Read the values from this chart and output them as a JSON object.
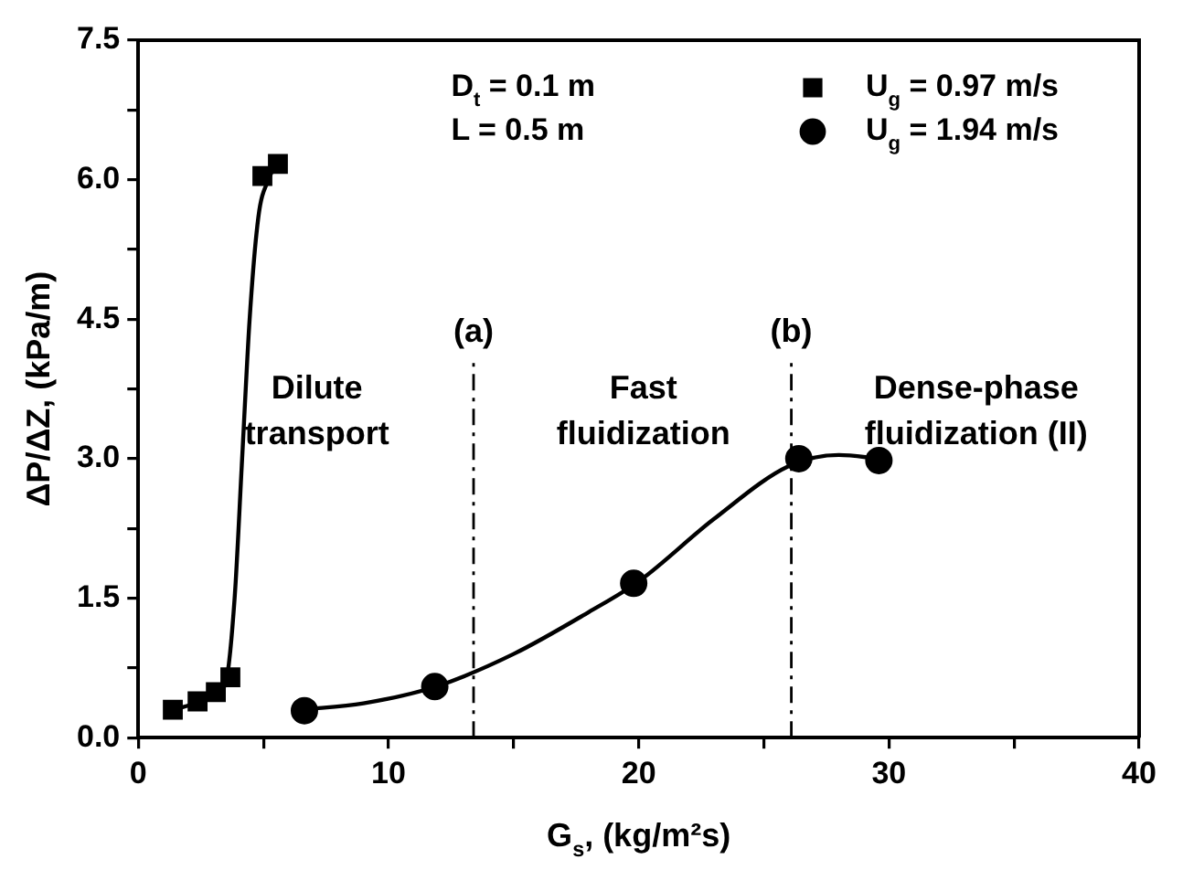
{
  "chart_data": {
    "type": "scatter",
    "xlabel": "G$_{s}$, (kg/m²s)",
    "ylabel": "ΔP/ΔZ, (kPa/m)",
    "xlim": [
      0,
      40
    ],
    "ylim": [
      0,
      7.5
    ],
    "xticks": [
      0,
      {
        "value": 5,
        "label": null
      },
      10,
      {
        "value": 15,
        "label": null
      },
      20,
      {
        "value": 25,
        "label": null
      },
      30,
      {
        "value": 35,
        "label": null
      },
      40
    ],
    "yticks": [
      {
        "value": 0,
        "label": "0.0"
      },
      {
        "value": 0.75,
        "label": null
      },
      {
        "value": 1.5,
        "label": "1.5"
      },
      {
        "value": 2.25,
        "label": null
      },
      {
        "value": 3.0,
        "label": "3.0"
      },
      {
        "value": 3.75,
        "label": null
      },
      {
        "value": 4.5,
        "label": "4.5"
      },
      {
        "value": 5.25,
        "label": null
      },
      {
        "value": 6.0,
        "label": "6.0"
      },
      {
        "value": 6.75,
        "label": null
      },
      {
        "value": 7.5,
        "label": "7.5"
      }
    ],
    "grid": false,
    "legend": "top right",
    "series": [
      {
        "name": "U$_{g}$ = 0.97 m/s",
        "color": "#000000",
        "marker": "square",
        "x": [
          1.38,
          2.37,
          3.1,
          3.68,
          4.96,
          5.58
        ],
        "values": [
          0.3,
          0.39,
          0.49,
          0.65,
          6.04,
          6.17
        ]
      },
      {
        "name": "U$_{g}$ = 1.94 m/s",
        "color": "#000000",
        "marker": "circle",
        "x": [
          6.64,
          11.85,
          19.8,
          26.4,
          29.6
        ],
        "values": [
          0.29,
          0.55,
          1.66,
          3.0,
          2.98
        ]
      },
      {
        "type": "line",
        "color": "#000000",
        "marker": "none",
        "x": [
          1.4,
          2.4,
          3.1,
          3.5,
          3.85,
          4.15,
          4.45,
          4.8,
          5.2,
          5.6
        ],
        "values": [
          0.3,
          0.38,
          0.47,
          0.6,
          1.5,
          3.0,
          4.5,
          5.6,
          6.0,
          6.2
        ]
      },
      {
        "type": "line",
        "color": "#000000",
        "marker": "none",
        "x": [
          6.5,
          9,
          11.9,
          15,
          18,
          20,
          23,
          26,
          28,
          29.6
        ],
        "values": [
          0.3,
          0.37,
          0.55,
          0.9,
          1.35,
          1.68,
          2.35,
          2.92,
          3.04,
          3.0
        ]
      }
    ],
    "ref_lines": [
      {
        "axis": "x",
        "value": 13.4,
        "label": "(a)",
        "line_style": "dashdot"
      },
      {
        "axis": "x",
        "value": 26.1,
        "label": "(b)",
        "line_style": "dashdot"
      }
    ],
    "annotations": [
      "D$_{t}$ = 0.1 m",
      "L = 0.5 m",
      "Dilute\ntransport",
      "Fast\nfluidization",
      "Dense-phase\nfluidization (II)"
    ]
  }
}
